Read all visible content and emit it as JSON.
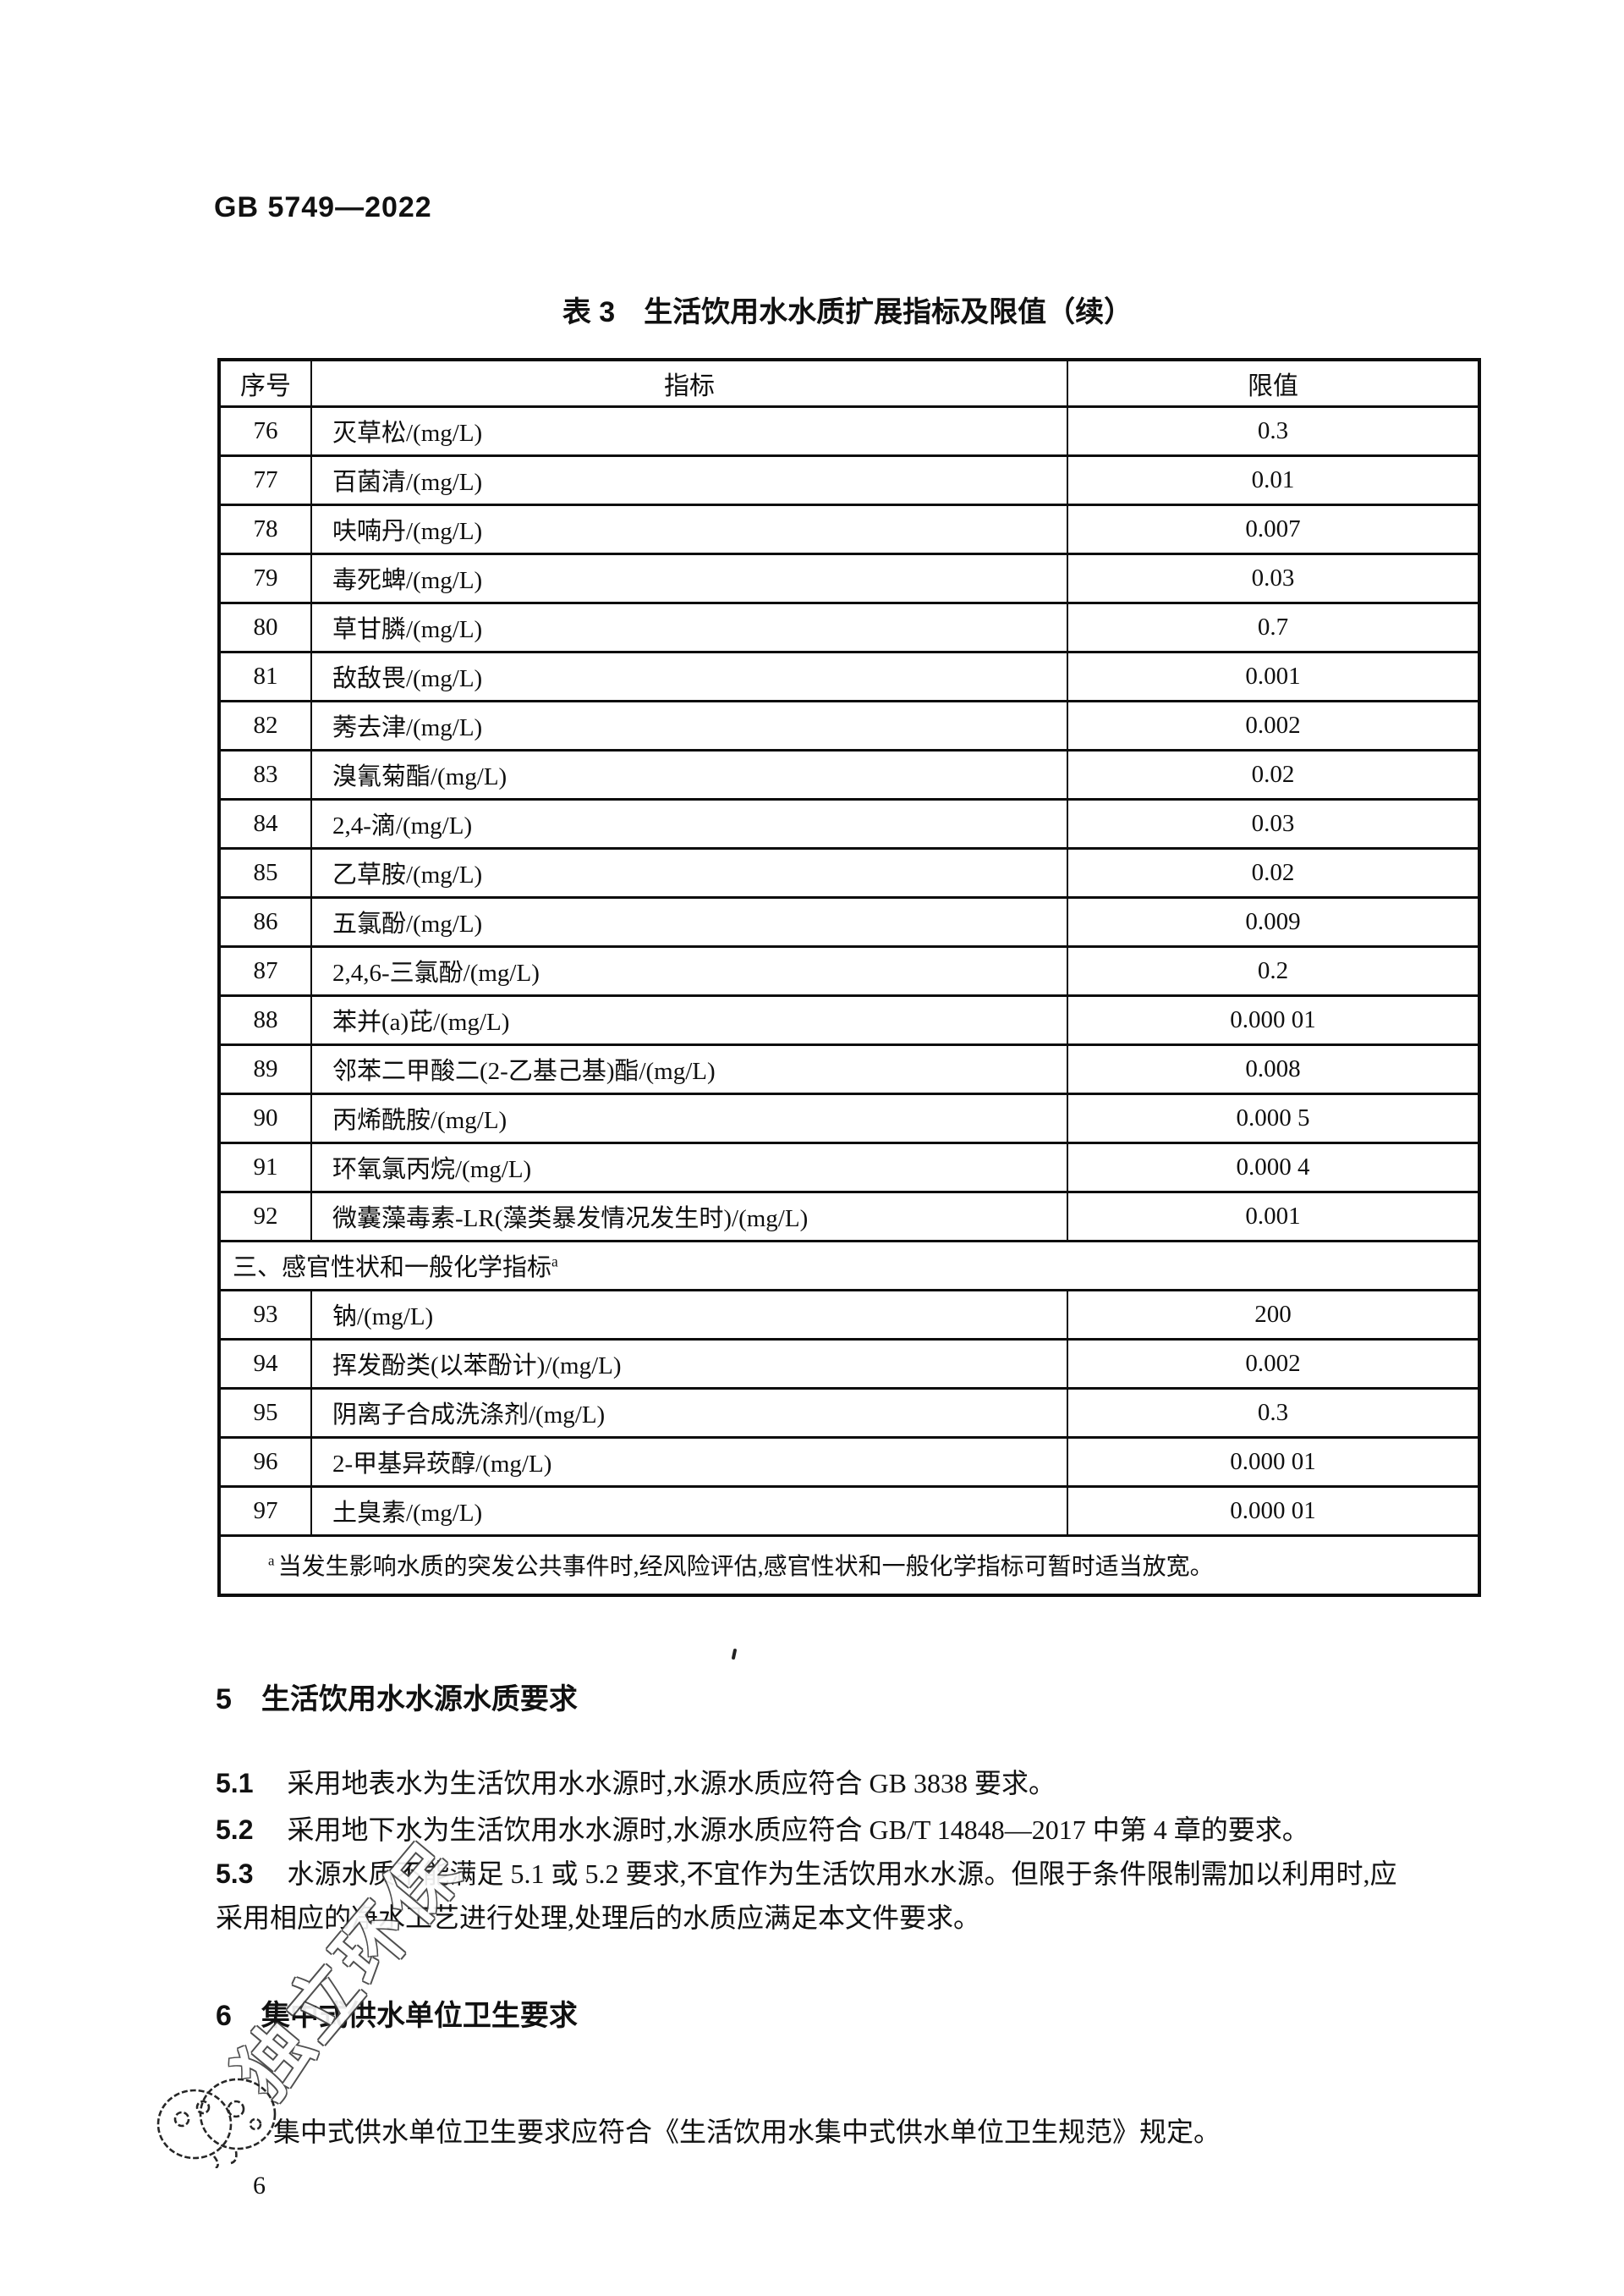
{
  "page": {
    "doc_code": "GB 5749—2022",
    "page_number": "6"
  },
  "table": {
    "title": "表 3　生活饮用水水质扩展指标及限值（续）",
    "columns": [
      "序号",
      "指标",
      "限值"
    ],
    "rows_a": [
      [
        "76",
        "灭草松/(mg/L)",
        "0.3"
      ],
      [
        "77",
        "百菌清/(mg/L)",
        "0.01"
      ],
      [
        "78",
        "呋喃丹/(mg/L)",
        "0.007"
      ],
      [
        "79",
        "毒死蜱/(mg/L)",
        "0.03"
      ],
      [
        "80",
        "草甘膦/(mg/L)",
        "0.7"
      ],
      [
        "81",
        "敌敌畏/(mg/L)",
        "0.001"
      ],
      [
        "82",
        "莠去津/(mg/L)",
        "0.002"
      ],
      [
        "83",
        "溴氰菊酯/(mg/L)",
        "0.02"
      ],
      [
        "84",
        "2,4-滴/(mg/L)",
        "0.03"
      ],
      [
        "85",
        "乙草胺/(mg/L)",
        "0.02"
      ],
      [
        "86",
        "五氯酚/(mg/L)",
        "0.009"
      ],
      [
        "87",
        "2,4,6-三氯酚/(mg/L)",
        "0.2"
      ],
      [
        "88",
        "苯并(a)芘/(mg/L)",
        "0.000 01"
      ],
      [
        "89",
        "邻苯二甲酸二(2-乙基己基)酯/(mg/L)",
        "0.008"
      ],
      [
        "90",
        "丙烯酰胺/(mg/L)",
        "0.000 5"
      ],
      [
        "91",
        "环氧氯丙烷/(mg/L)",
        "0.000 4"
      ],
      [
        "92",
        "微囊藻毒素-LR(藻类暴发情况发生时)/(mg/L)",
        "0.001"
      ]
    ],
    "section_row": {
      "text": "三、感官性状和一般化学指标",
      "sup": "a"
    },
    "rows_b": [
      [
        "93",
        "钠/(mg/L)",
        "200"
      ],
      [
        "94",
        "挥发酚类(以苯酚计)/(mg/L)",
        "0.002"
      ],
      [
        "95",
        "阴离子合成洗涤剂/(mg/L)",
        "0.3"
      ],
      [
        "96",
        "2-甲基异莰醇/(mg/L)",
        "0.000 01"
      ],
      [
        "97",
        "土臭素/(mg/L)",
        "0.000 01"
      ]
    ],
    "footnote": {
      "sup": "a",
      "text": "当发生影响水质的突发公共事件时,经风险评估,感官性状和一般化学指标可暂时适当放宽。"
    }
  },
  "section5": {
    "number": "5",
    "title": "生活饮用水水源水质要求",
    "item1_num": "5.1",
    "item1_text": "采用地表水为生活饮用水水源时,水源水质应符合 GB 3838 要求。",
    "item2_num": "5.2",
    "item2_text": "采用地下水为生活饮用水水源时,水源水质应符合 GB/T 14848—2017 中第 4 章的要求。",
    "item3_num": "5.3",
    "item3_line1": "水源水质不能满足 5.1 或 5.2 要求,不宜作为生活饮用水水源。但限于条件限制需加以利用时,应",
    "item3_line2": "采用相应的净水工艺进行处理,处理后的水质应满足本文件要求。"
  },
  "section6": {
    "number": "6",
    "title": "集中式供水单位卫生要求",
    "paragraph": "集中式供水单位卫生要求应符合《生活饮用水集中式供水单位卫生规范》规定。"
  },
  "annotations": {
    "handwriting": "独立环保"
  }
}
